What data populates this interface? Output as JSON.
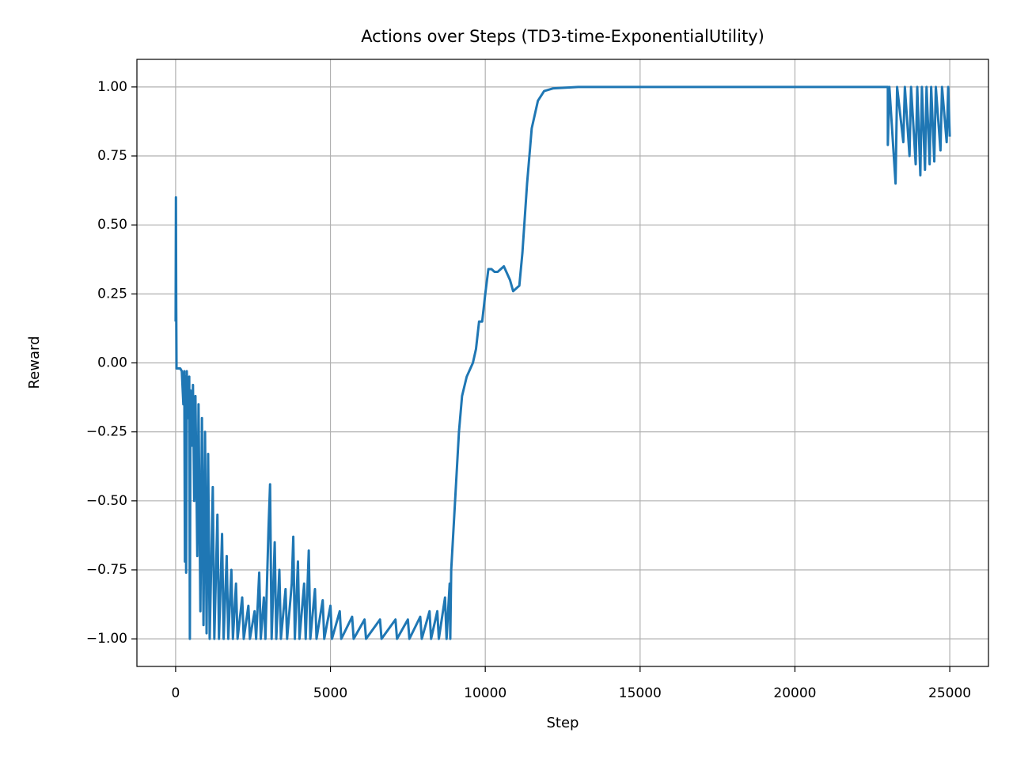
{
  "chart_data": {
    "type": "line",
    "title": "Actions over Steps (TD3-time-ExponentialUtility)",
    "x_label": "Step",
    "y_label": "Reward",
    "grid": true,
    "xlim": [
      -1250,
      26250
    ],
    "ylim": [
      -1.1,
      1.1
    ],
    "xticks": [
      0,
      5000,
      10000,
      15000,
      20000,
      25000
    ],
    "yticks": [
      {
        "value": -1,
        "label": "−1.00"
      },
      {
        "value": -0.75,
        "label": "−0.75"
      },
      {
        "value": -0.5,
        "label": "−0.50"
      },
      {
        "value": -0.25,
        "label": "−0.25"
      },
      {
        "value": 0,
        "label": "0.00"
      },
      {
        "value": 0.25,
        "label": "0.25"
      },
      {
        "value": 0.5,
        "label": "0.50"
      },
      {
        "value": 0.75,
        "label": "0.75"
      },
      {
        "value": 1,
        "label": "1.00"
      }
    ],
    "series": [
      {
        "color": "#1f77b4",
        "x": [
          0,
          10,
          20,
          30,
          150,
          200,
          250,
          280,
          300,
          320,
          340,
          360,
          400,
          440,
          460,
          480,
          520,
          560,
          600,
          640,
          700,
          740,
          800,
          850,
          900,
          950,
          1000,
          1050,
          1100,
          1200,
          1250,
          1350,
          1400,
          1500,
          1550,
          1650,
          1700,
          1800,
          1850,
          1950,
          2000,
          2150,
          2200,
          2350,
          2400,
          2550,
          2600,
          2700,
          2750,
          2850,
          2900,
          3000,
          3050,
          3100,
          3200,
          3250,
          3350,
          3400,
          3550,
          3600,
          3750,
          3800,
          3850,
          3950,
          4000,
          4150,
          4200,
          4300,
          4350,
          4500,
          4550,
          4750,
          4800,
          5000,
          5050,
          5300,
          5350,
          5700,
          5750,
          6100,
          6150,
          6600,
          6650,
          7100,
          7150,
          7500,
          7550,
          7900,
          7950,
          8200,
          8250,
          8450,
          8500,
          8700,
          8750,
          8850,
          8870,
          8900,
          8950,
          9050,
          9150,
          9250,
          9400,
          9600,
          9700,
          9800,
          9900,
          10000,
          10100,
          10200,
          10300,
          10400,
          10600,
          10800,
          10900,
          11100,
          11200,
          11350,
          11500,
          11700,
          11900,
          12200,
          13000,
          23000,
          23000,
          23050,
          23250,
          23300,
          23500,
          23550,
          23700,
          23750,
          23900,
          23950,
          24050,
          24100,
          24200,
          24250,
          24350,
          24400,
          24500,
          24550,
          24700,
          24750,
          24900,
          24950,
          25000
        ],
        "values": [
          0.15,
          0.6,
          0.2,
          -0.02,
          -0.02,
          -0.03,
          -0.15,
          -0.03,
          -0.72,
          -0.05,
          -0.76,
          -0.03,
          -0.2,
          -0.05,
          -1.0,
          -0.1,
          -0.3,
          -0.08,
          -0.5,
          -0.12,
          -0.7,
          -0.15,
          -0.9,
          -0.2,
          -0.95,
          -0.25,
          -0.98,
          -0.33,
          -1.0,
          -0.45,
          -1.0,
          -0.55,
          -1.0,
          -0.62,
          -1.0,
          -0.7,
          -1.0,
          -0.75,
          -1.0,
          -0.8,
          -1.0,
          -0.85,
          -1.0,
          -0.88,
          -1.0,
          -0.9,
          -1.0,
          -0.76,
          -1.0,
          -0.85,
          -1.0,
          -0.6,
          -0.44,
          -1.0,
          -0.65,
          -1.0,
          -0.75,
          -1.0,
          -0.82,
          -1.0,
          -0.8,
          -0.63,
          -1.0,
          -0.72,
          -1.0,
          -0.8,
          -1.0,
          -0.68,
          -1.0,
          -0.82,
          -1.0,
          -0.86,
          -1.0,
          -0.88,
          -1.0,
          -0.9,
          -1.0,
          -0.92,
          -1.0,
          -0.93,
          -1.0,
          -0.93,
          -1.0,
          -0.93,
          -1.0,
          -0.93,
          -1.0,
          -0.92,
          -1.0,
          -0.9,
          -1.0,
          -0.9,
          -1.0,
          -0.85,
          -1.0,
          -0.8,
          -1.0,
          -0.75,
          -0.65,
          -0.45,
          -0.25,
          -0.12,
          -0.05,
          0.0,
          0.05,
          0.15,
          0.15,
          0.25,
          0.34,
          0.34,
          0.33,
          0.33,
          0.35,
          0.3,
          0.26,
          0.28,
          0.4,
          0.65,
          0.85,
          0.95,
          0.985,
          0.995,
          1.0,
          1.0,
          0.79,
          1.0,
          0.65,
          1.0,
          0.8,
          1.0,
          0.75,
          1.0,
          0.72,
          1.0,
          0.68,
          1.0,
          0.7,
          1.0,
          0.72,
          1.0,
          0.73,
          1.0,
          0.77,
          1.0,
          0.8,
          1.0,
          0.82
        ]
      }
    ]
  }
}
